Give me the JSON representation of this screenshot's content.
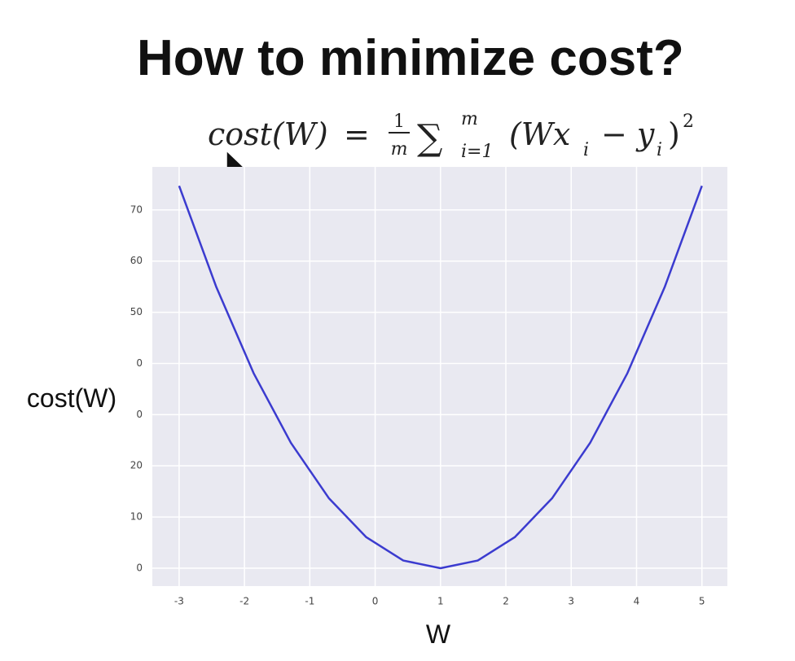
{
  "chart_data": {
    "type": "line",
    "title": "How to minimize cost?",
    "formula": {
      "lhs": "cost(W)",
      "eq": "=",
      "num": "1",
      "den": "m",
      "sum": "∑",
      "sup": "m",
      "sub": "i=1",
      "open": "(Wx",
      "sub1": "i",
      "minus": "− y",
      "sub2": "i",
      "close": ")",
      "power": "2"
    },
    "x_label": "W",
    "y_label": "cost(W)",
    "x": [
      -3,
      -2.43,
      -1.86,
      -1.29,
      -0.71,
      -0.14,
      0.43,
      1,
      1.57,
      2.14,
      2.71,
      3.29,
      3.86,
      4.43,
      5
    ],
    "series": [
      {
        "name": "cost",
        "color": "#3b3bcf",
        "values": [
          74.7,
          54.9,
          38.1,
          24.5,
          13.7,
          6.1,
          1.5,
          0,
          1.5,
          6.1,
          13.7,
          24.5,
          38.1,
          54.9,
          74.7
        ]
      }
    ],
    "xlim": [
      -3.41,
      5.39
    ],
    "ylim": [
      -3.5,
      78.4
    ],
    "xticks": [
      -3,
      -2,
      -1,
      0,
      1,
      2,
      3,
      4,
      5
    ],
    "yticks": [
      0,
      10,
      20,
      {
        "value": 30,
        "label": "0"
      },
      {
        "value": 40,
        "label": "0"
      },
      50,
      60,
      70
    ],
    "grid": true,
    "background": "#e9e9f1"
  }
}
